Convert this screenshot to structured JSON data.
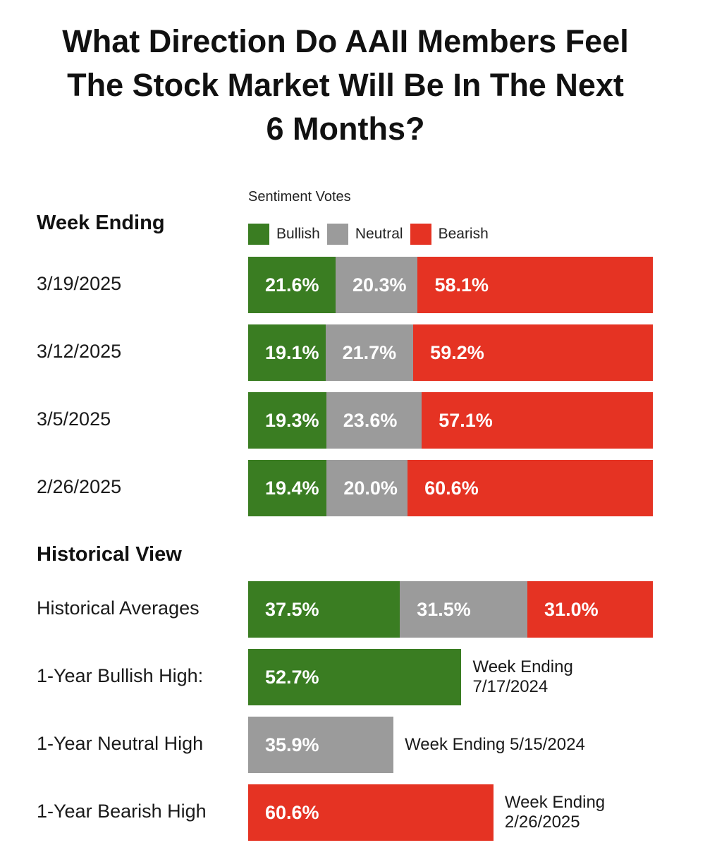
{
  "title_lines": [
    "What Direction Do AAII Members Feel",
    "The Stock Market Will Be In The Next",
    "6 Months?"
  ],
  "subtitle": "Sentiment Votes",
  "sections": {
    "weekly": "Week Ending",
    "historical": "Historical View"
  },
  "legend": [
    {
      "label": "Bullish",
      "color": "#3a7d22"
    },
    {
      "label": "Neutral",
      "color": "#9b9b9b"
    },
    {
      "label": "Bearish",
      "color": "#e53323"
    }
  ],
  "chart_data": {
    "type": "bar",
    "orientation": "horizontal",
    "stacked": true,
    "unit": "%",
    "categories": [
      "3/19/2025",
      "3/12/2025",
      "3/5/2025",
      "2/26/2025",
      "Historical Averages"
    ],
    "series": [
      {
        "name": "Bullish",
        "values": [
          21.6,
          19.1,
          19.3,
          19.4,
          37.5
        ],
        "labels": [
          "21.6%",
          "19.1%",
          "19.3%",
          "19.4%",
          "37.5%"
        ]
      },
      {
        "name": "Neutral",
        "values": [
          20.3,
          21.7,
          23.6,
          20.0,
          31.5
        ],
        "labels": [
          "20.3%",
          "21.7%",
          "23.6%",
          "20.0%",
          "31.5%"
        ]
      },
      {
        "name": "Bearish",
        "values": [
          58.1,
          59.2,
          57.1,
          60.6,
          31.0
        ],
        "labels": [
          "58.1%",
          "59.2%",
          "57.1%",
          "60.6%",
          "31.0%"
        ]
      }
    ],
    "highs": [
      {
        "category": "1-Year Bullish High:",
        "series": "Bullish",
        "value": 52.7,
        "label": "52.7%",
        "note_lines": [
          "Week Ending",
          "7/17/2024"
        ]
      },
      {
        "category": "1-Year Neutral High",
        "series": "Neutral",
        "value": 35.9,
        "label": "35.9%",
        "note_lines": [
          "Week Ending 5/15/2024"
        ]
      },
      {
        "category": "1-Year Bearish High",
        "series": "Bearish",
        "value": 60.6,
        "label": "60.6%",
        "note_lines": [
          "Week Ending",
          "2/26/2025"
        ]
      }
    ]
  }
}
